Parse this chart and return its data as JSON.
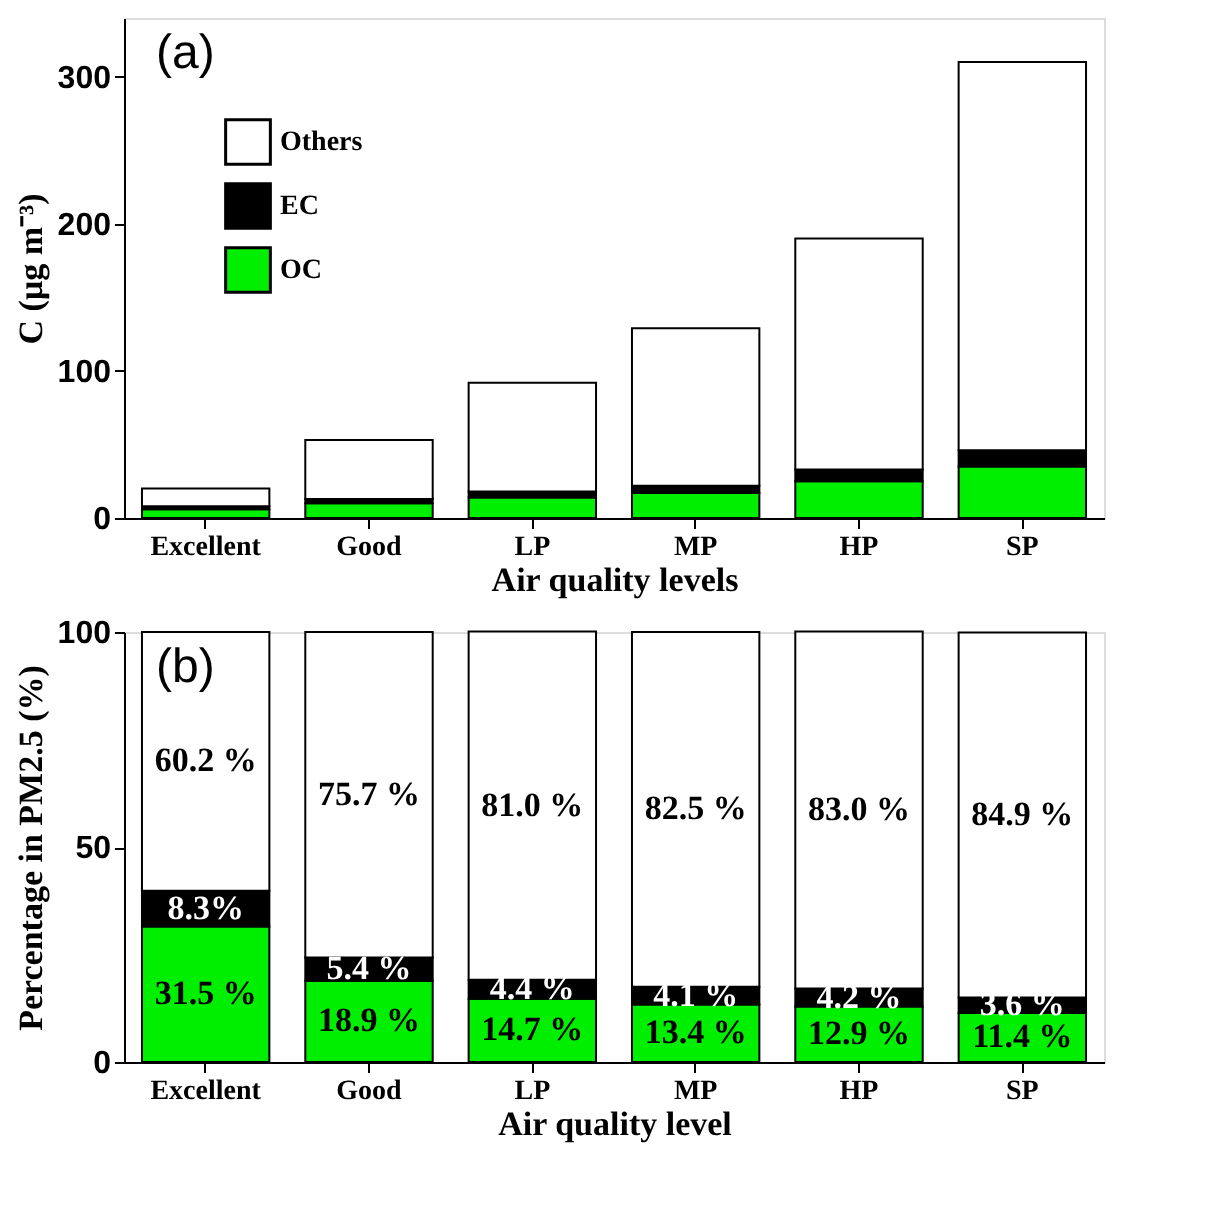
{
  "chart_data": [
    {
      "type": "bar",
      "stacked": true,
      "ylabel": "C (μg m⁻³)",
      "xlabel": "Air quality levels",
      "annotations": [
        "(a)"
      ],
      "categories": [
        "Excellent",
        "Good",
        "LP",
        "MP",
        "HP",
        "SP"
      ],
      "series": [
        {
          "name": "OC",
          "color": "#00ee00",
          "values": [
            6,
            10,
            14,
            17,
            25,
            35
          ]
        },
        {
          "name": "EC",
          "color": "#000000",
          "values": [
            2,
            3,
            4,
            5,
            8,
            11
          ]
        },
        {
          "name": "Others",
          "color": "#ffffff",
          "values": [
            12,
            40,
            74,
            107,
            157,
            264
          ]
        }
      ],
      "ylim": [
        0,
        340
      ],
      "yticks": [
        0,
        100,
        200,
        300
      ],
      "grid": false,
      "legend": "top left"
    },
    {
      "type": "bar",
      "stacked": true,
      "ylabel": "Percentage in PM2.5 (%)",
      "xlabel": "Air quality level",
      "annotations": [
        "(b)"
      ],
      "categories": [
        "Excellent",
        "Good",
        "LP",
        "MP",
        "HP",
        "SP"
      ],
      "series": [
        {
          "color": "#00ee00",
          "values": [
            31.5,
            18.9,
            14.7,
            13.4,
            12.9,
            11.4
          ],
          "value_labels": [
            "31.5 %",
            "18.9 %",
            "14.7 %",
            "13.4 %",
            "12.9 %",
            "11.4 %"
          ]
        },
        {
          "color": "#000000",
          "values": [
            8.3,
            5.4,
            4.4,
            4.1,
            4.2,
            3.6
          ],
          "value_labels": [
            "8.3%",
            "5.4 %",
            "4.4 %",
            "4.1 %",
            "4.2 %",
            "3.6 %"
          ]
        },
        {
          "color": "#ffffff",
          "values": [
            60.2,
            75.7,
            81.0,
            82.5,
            83.0,
            84.9
          ],
          "value_labels": [
            "60.2 %",
            "75.7 %",
            "81.0 %",
            "82.5 %",
            "83.0 %",
            "84.9 %"
          ]
        }
      ],
      "ylim": [
        0,
        100
      ],
      "yticks": [
        0,
        50,
        100
      ],
      "grid": false,
      "legend": false
    }
  ]
}
